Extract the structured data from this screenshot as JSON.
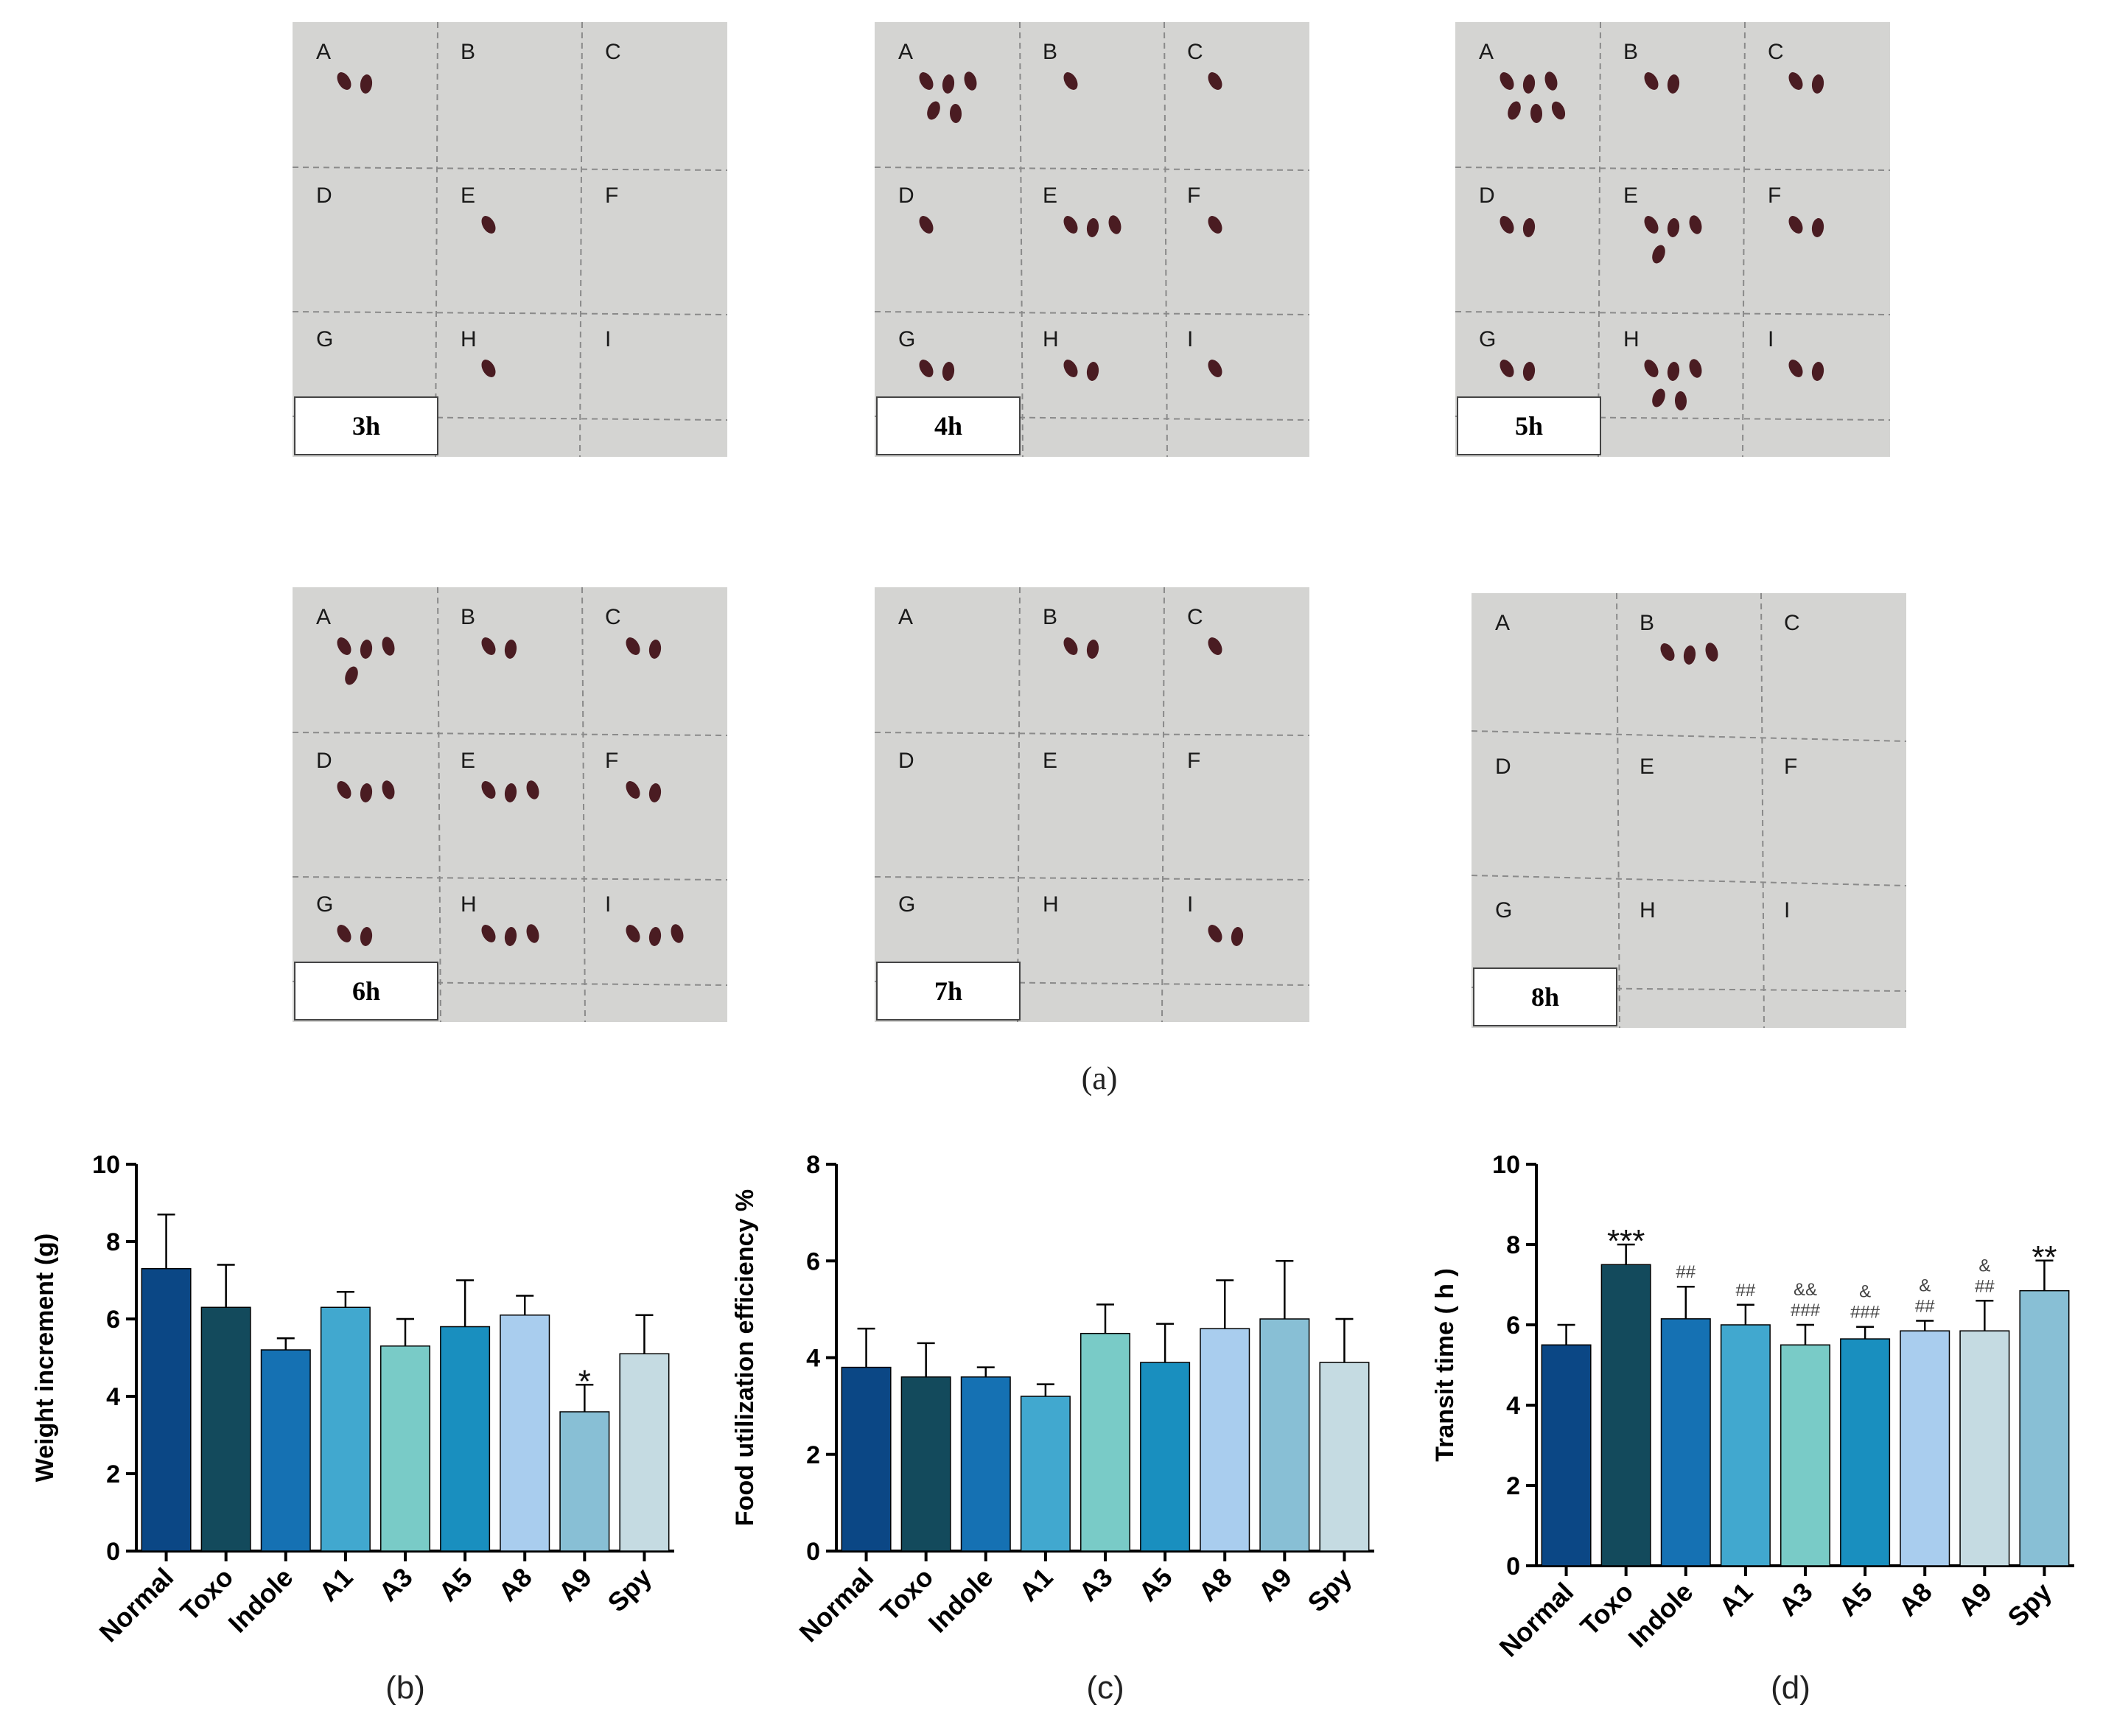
{
  "panel_a": {
    "caption": "(a)",
    "cell_letters": [
      "A",
      "B",
      "C",
      "D",
      "E",
      "F",
      "G",
      "H",
      "I"
    ],
    "photos": [
      {
        "label": "3h",
        "pellets": [
          [
            0,
            2
          ],
          [
            4,
            1
          ],
          [
            7,
            1
          ]
        ]
      },
      {
        "label": "4h",
        "pellets": [
          [
            0,
            5
          ],
          [
            1,
            1
          ],
          [
            2,
            1
          ],
          [
            3,
            1
          ],
          [
            4,
            3
          ],
          [
            5,
            1
          ],
          [
            6,
            2
          ],
          [
            7,
            2
          ],
          [
            8,
            1
          ]
        ]
      },
      {
        "label": "5h",
        "pellets": [
          [
            0,
            6
          ],
          [
            1,
            2
          ],
          [
            2,
            2
          ],
          [
            3,
            2
          ],
          [
            4,
            4
          ],
          [
            5,
            2
          ],
          [
            6,
            2
          ],
          [
            7,
            5
          ],
          [
            8,
            2
          ]
        ]
      },
      {
        "label": "6h",
        "pellets": [
          [
            0,
            4
          ],
          [
            1,
            2
          ],
          [
            2,
            2
          ],
          [
            3,
            3
          ],
          [
            4,
            3
          ],
          [
            5,
            2
          ],
          [
            6,
            2
          ],
          [
            7,
            3
          ],
          [
            8,
            3
          ]
        ]
      },
      {
        "label": "7h",
        "pellets": [
          [
            1,
            2
          ],
          [
            2,
            1
          ],
          [
            8,
            2
          ]
        ]
      },
      {
        "label": "8h",
        "pellets": [
          [
            1,
            3
          ]
        ]
      }
    ]
  },
  "chart_data": [
    {
      "type": "bar",
      "caption": "(b)",
      "ylabel": "Weight increment (g)",
      "ylim": [
        0,
        10
      ],
      "yticks": [
        "0",
        "2",
        "4",
        "6",
        "8",
        "10"
      ],
      "categories": [
        "Normal",
        "Toxo",
        "Indole",
        "A1",
        "A3",
        "A5",
        "A8",
        "A9",
        "Spy"
      ],
      "values": [
        7.3,
        6.3,
        5.2,
        6.3,
        5.3,
        5.8,
        6.1,
        3.6,
        5.1
      ],
      "errors": [
        1.4,
        1.1,
        0.3,
        0.4,
        0.7,
        1.2,
        0.5,
        0.7,
        1.0
      ],
      "annotations": [
        "",
        "",
        "",
        "",
        "",
        "",
        "",
        "*",
        ""
      ],
      "colors": [
        "#0b4785",
        "#134a5c",
        "#1571b3",
        "#41a8cf",
        "#79cbc7",
        "#198fbf",
        "#a9cdee",
        "#88bfd5",
        "#c5dbe2"
      ]
    },
    {
      "type": "bar",
      "caption": "(c)",
      "ylabel": "Food utilization efficiency %",
      "ylim": [
        0,
        8
      ],
      "yticks": [
        "0",
        "2",
        "4",
        "6",
        "8"
      ],
      "categories": [
        "Normal",
        "Toxo",
        "Indole",
        "A1",
        "A3",
        "A5",
        "A8",
        "A9",
        "Spy"
      ],
      "values": [
        3.8,
        3.6,
        3.6,
        3.2,
        4.5,
        3.9,
        4.6,
        4.8,
        3.9
      ],
      "errors": [
        0.8,
        0.7,
        0.2,
        0.25,
        0.6,
        0.8,
        1.0,
        1.2,
        0.9
      ],
      "annotations": [
        "",
        "",
        "",
        "",
        "",
        "",
        "",
        "",
        ""
      ],
      "colors": [
        "#0b4785",
        "#134a5c",
        "#1571b3",
        "#41a8cf",
        "#79cbc7",
        "#198fbf",
        "#a9cdee",
        "#88bfd5",
        "#c5dbe2"
      ]
    },
    {
      "type": "bar",
      "caption": "(d)",
      "ylabel": "Transit time ( h )",
      "ylim": [
        0,
        10
      ],
      "yticks": [
        "0",
        "2",
        "4",
        "6",
        "8",
        "10"
      ],
      "categories": [
        "Normal",
        "Toxo",
        "Indole",
        "A1",
        "A3",
        "A5",
        "A8",
        "A9",
        "Spy"
      ],
      "values": [
        5.5,
        7.5,
        6.15,
        6.0,
        5.5,
        5.65,
        5.85,
        5.85,
        6.85
      ],
      "errors": [
        0.5,
        0.5,
        0.8,
        0.5,
        0.5,
        0.3,
        0.25,
        0.75,
        0.75
      ],
      "annotations": [
        "",
        "***",
        "##",
        "##",
        "&&\n###",
        "&\n###",
        "&\n##",
        "&\n##",
        "**"
      ],
      "colors": [
        "#0b4785",
        "#134a5c",
        "#1571b3",
        "#41a8cf",
        "#79cbc7",
        "#198fbf",
        "#a9cdee",
        "#c5dbe2",
        "#88bfd5"
      ]
    }
  ]
}
